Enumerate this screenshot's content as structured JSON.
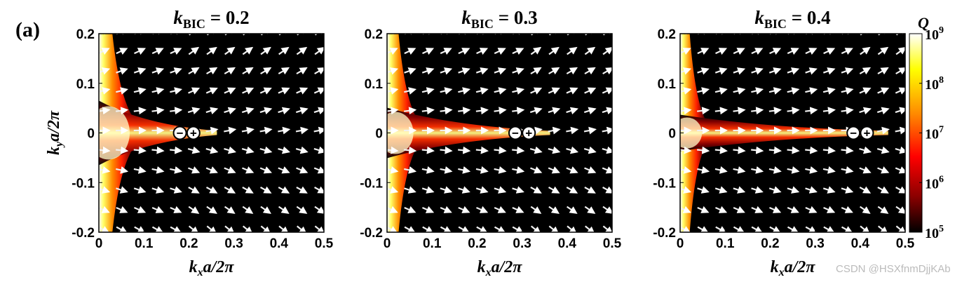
{
  "figure": {
    "panel_label": "(a)",
    "watermark": "CSDN @HSXfnmDjjKAb"
  },
  "colorbar": {
    "label": "Q",
    "tick_bases": [
      "10",
      "10",
      "10",
      "10",
      "10"
    ],
    "tick_exponents": [
      "9",
      "8",
      "7",
      "6",
      "5"
    ],
    "log_range": [
      5,
      9
    ],
    "colors": [
      "#000000",
      "#8b0000",
      "#ff0000",
      "#ff8c00",
      "#ffff00",
      "#ffffff"
    ]
  },
  "chart_data": [
    {
      "type": "heatmap",
      "title_k": "k",
      "title_sub": "BIC",
      "title_rest": " = 0.2",
      "k_bic": 0.2,
      "xlabel": "k",
      "xlabel_sub": "x",
      "xlabel_rest": "a/2π",
      "ylabel": "k",
      "ylabel_sub": "y",
      "ylabel_rest": "a/2π",
      "xlim": [
        0,
        0.5
      ],
      "ylim": [
        -0.2,
        0.2
      ],
      "x_ticks": [
        "0",
        "0.1",
        "0.2",
        "0.3",
        "0.4",
        "0.5"
      ],
      "y_ticks": [
        "0.2",
        "0.1",
        "0",
        "-0.1",
        "-0.2"
      ],
      "charges": [
        {
          "symbol": "−",
          "x": 0.18,
          "y": 0
        },
        {
          "symbol": "+",
          "x": 0.21,
          "y": 0
        }
      ],
      "show_xlabel": true,
      "show_ylabel": true
    },
    {
      "type": "heatmap",
      "title_k": "k",
      "title_sub": "BIC",
      "title_rest": " = 0.3",
      "k_bic": 0.3,
      "xlabel": "k",
      "xlabel_sub": "x",
      "xlabel_rest": "a/2π",
      "xlim": [
        0,
        0.5
      ],
      "ylim": [
        -0.2,
        0.2
      ],
      "x_ticks": [
        "0",
        "0.1",
        "0.2",
        "0.3",
        "0.4",
        "0.5"
      ],
      "y_ticks": [
        "0.2",
        "0.1",
        "0",
        "-0.1",
        "-0.2"
      ],
      "charges": [
        {
          "symbol": "−",
          "x": 0.285,
          "y": 0
        },
        {
          "symbol": "+",
          "x": 0.315,
          "y": 0
        }
      ],
      "show_xlabel": true,
      "show_ylabel": false
    },
    {
      "type": "heatmap",
      "title_k": "k",
      "title_sub": "BIC",
      "title_rest": " = 0.4",
      "k_bic": 0.4,
      "xlabel": "k",
      "xlabel_sub": "x",
      "xlabel_rest": "a/2π",
      "xlim": [
        0,
        0.5
      ],
      "ylim": [
        -0.2,
        0.2
      ],
      "x_ticks": [
        "0",
        "0.1",
        "0.2",
        "0.3",
        "0.4",
        "0.5"
      ],
      "y_ticks": [
        "0.2",
        "0.1",
        "0",
        "-0.1",
        "-0.2"
      ],
      "charges": [
        {
          "symbol": "−",
          "x": 0.385,
          "y": 0
        },
        {
          "symbol": "+",
          "x": 0.415,
          "y": 0
        }
      ],
      "show_xlabel": true,
      "show_ylabel": false
    }
  ]
}
